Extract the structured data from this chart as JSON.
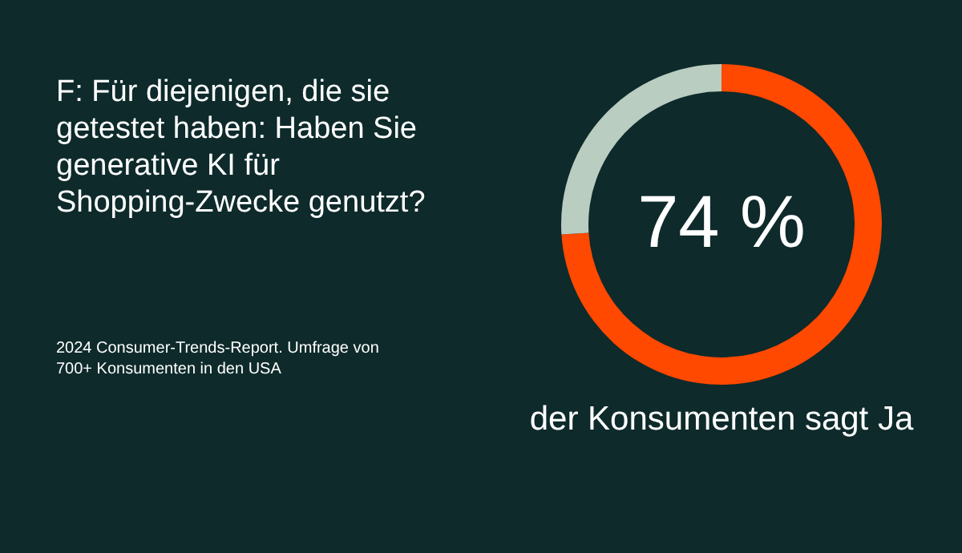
{
  "chart_data": {
    "type": "donut",
    "title": "F: Für diejenigen, die sie getestet haben: Haben Sie generative KI für Shopping-Zwecke genutzt?",
    "categories": [
      null,
      null
    ],
    "values": [
      74,
      26
    ],
    "colors": [
      "#ff4800",
      "#b9cdc0"
    ],
    "value_labels": [
      "74 %",
      null
    ],
    "annotations": [
      "der Konsumenten sagt Ja",
      "2024 Consumer-Trends-Report. Umfrage von 700+ Konsumenten in den USA"
    ]
  }
}
